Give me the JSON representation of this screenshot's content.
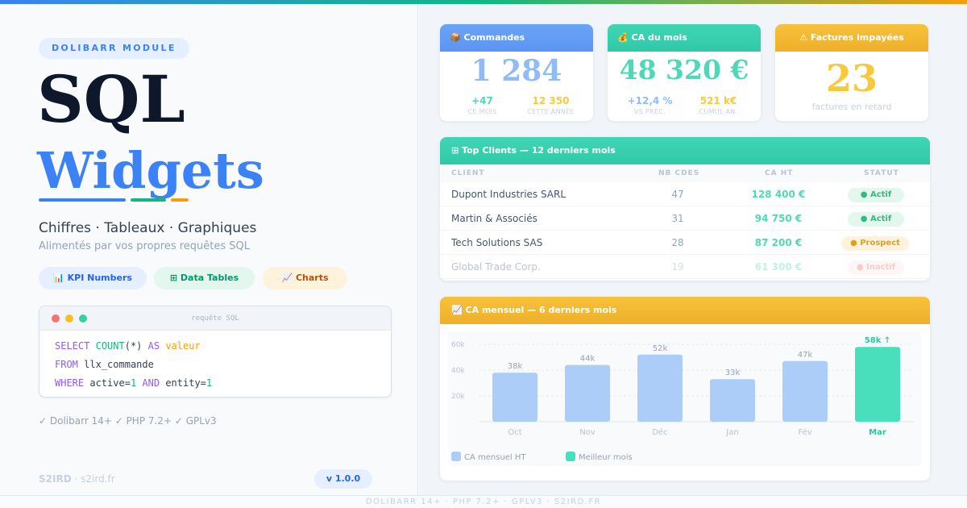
{
  "left": {
    "module_pill": "DOLIBARR MODULE",
    "title_line1": "SQL",
    "title_line2": "Widgets",
    "subtitle": "Chiffres · Tableaux · Graphiques",
    "subtitle2": "Alimentés par vos propres requêtes SQL",
    "features": [
      {
        "icon": "bar-chart-icon",
        "label": "📊 KPI Numbers"
      },
      {
        "icon": "grid-icon",
        "label": "⊞ Data Tables"
      },
      {
        "icon": "line-chart-icon",
        "label": "📈 Charts"
      }
    ],
    "code": {
      "title": "requête SQL",
      "line1": {
        "kw1": "SELECT",
        "fn": "COUNT",
        "args": "(*)",
        "kw2": "AS",
        "alias": "valeur"
      },
      "line2": {
        "kw": "FROM",
        "table": "llx_commande"
      },
      "line3": {
        "kw": "WHERE",
        "c1": "active=",
        "v1": "1",
        "kw2": "AND",
        "c2": "entity=",
        "v2": "1"
      }
    },
    "compat": "✓ Dolibarr 14+ ✓ PHP 7.2+ ✓ GPLv3",
    "brand_name": "S2IRD",
    "brand_sep": " · ",
    "brand_site": "s2ird.fr",
    "version": "v 1.0.0"
  },
  "kpis": [
    {
      "title": "📦 Commandes",
      "value": "1 284",
      "sub": [
        {
          "value": "+47",
          "caption": "CE MOIS"
        },
        {
          "value": "12 350",
          "caption": "CETTE ANNÉE"
        }
      ]
    },
    {
      "title": "💰 CA du mois",
      "value": "48 320 €",
      "sub": [
        {
          "value": "+12,4 %",
          "caption": "VS PRÉC."
        },
        {
          "value": "521 k€",
          "caption": "CUMUL AN."
        }
      ]
    },
    {
      "title": "⚠ Factures impayées",
      "value": "23",
      "caption": "factures en retard"
    }
  ],
  "clients": {
    "title": "⊞ Top Clients — 12 derniers mois",
    "columns": [
      "CLIENT",
      "NB CDES",
      "CA HT",
      "STATUT"
    ],
    "rows": [
      {
        "client": "Dupont Industries SARL",
        "nb": "47",
        "ca": "128 400 €",
        "status": "● Actif"
      },
      {
        "client": "Martin & Associés",
        "nb": "31",
        "ca": "94 750 €",
        "status": "● Actif"
      },
      {
        "client": "Tech Solutions SAS",
        "nb": "28",
        "ca": "87 200 €",
        "status": "● Prospect"
      },
      {
        "client": "Global Trade Corp.",
        "nb": "19",
        "ca": "61 300 €",
        "status": "● Inactif"
      }
    ]
  },
  "chart_title": "📈 CA mensuel — 6 derniers mois",
  "chart_data": {
    "type": "bar",
    "title": "CA mensuel — 6 derniers mois",
    "categories": [
      "Oct",
      "Nov",
      "Déc",
      "Jan",
      "Fév",
      "Mar"
    ],
    "series": [
      {
        "name": "CA mensuel HT",
        "values": [
          38,
          44,
          52,
          33,
          47,
          58
        ]
      }
    ],
    "value_labels": [
      "38k",
      "44k",
      "52k",
      "33k",
      "47k",
      "58k ↑"
    ],
    "y_ticks": [
      "20k",
      "40k",
      "60k"
    ],
    "ylim": [
      0,
      60
    ],
    "highlight_index": 5,
    "legend": [
      "CA mensuel HT",
      "Meilleur mois"
    ],
    "colors": {
      "bar": "#abcdf8",
      "highlight": "#4adfbc"
    }
  },
  "footer": "DOLIBARR 14+ · PHP 7.2+ · GPLV3 · S2IRD.FR"
}
